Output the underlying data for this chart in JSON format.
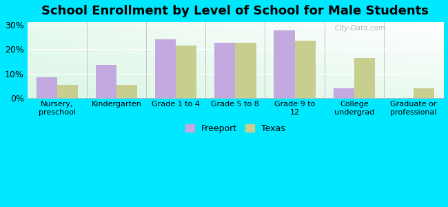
{
  "title": "School Enrollment by Level of School for Male Students",
  "categories": [
    "Nursery,\npreschool",
    "Kindergarten",
    "Grade 1 to 4",
    "Grade 5 to 8",
    "Grade 9 to\n12",
    "College\nundergrad",
    "Graduate or\nprofessional"
  ],
  "freeport": [
    8.5,
    13.5,
    24.0,
    22.5,
    27.5,
    4.0,
    0.0
  ],
  "texas": [
    5.5,
    5.5,
    21.5,
    22.5,
    23.5,
    16.5,
    4.0
  ],
  "freeport_color": "#c4a8e0",
  "texas_color": "#c8cf8e",
  "background_outer": "#00e8ff",
  "title_fontsize": 13,
  "ylabel_ticks": [
    "0%",
    "10%",
    "20%",
    "30%"
  ],
  "yticks": [
    0,
    10,
    20,
    30
  ],
  "ylim": [
    0,
    31
  ],
  "bar_width": 0.35,
  "legend_labels": [
    "Freeport",
    "Texas"
  ],
  "watermark": "City-Data.com"
}
